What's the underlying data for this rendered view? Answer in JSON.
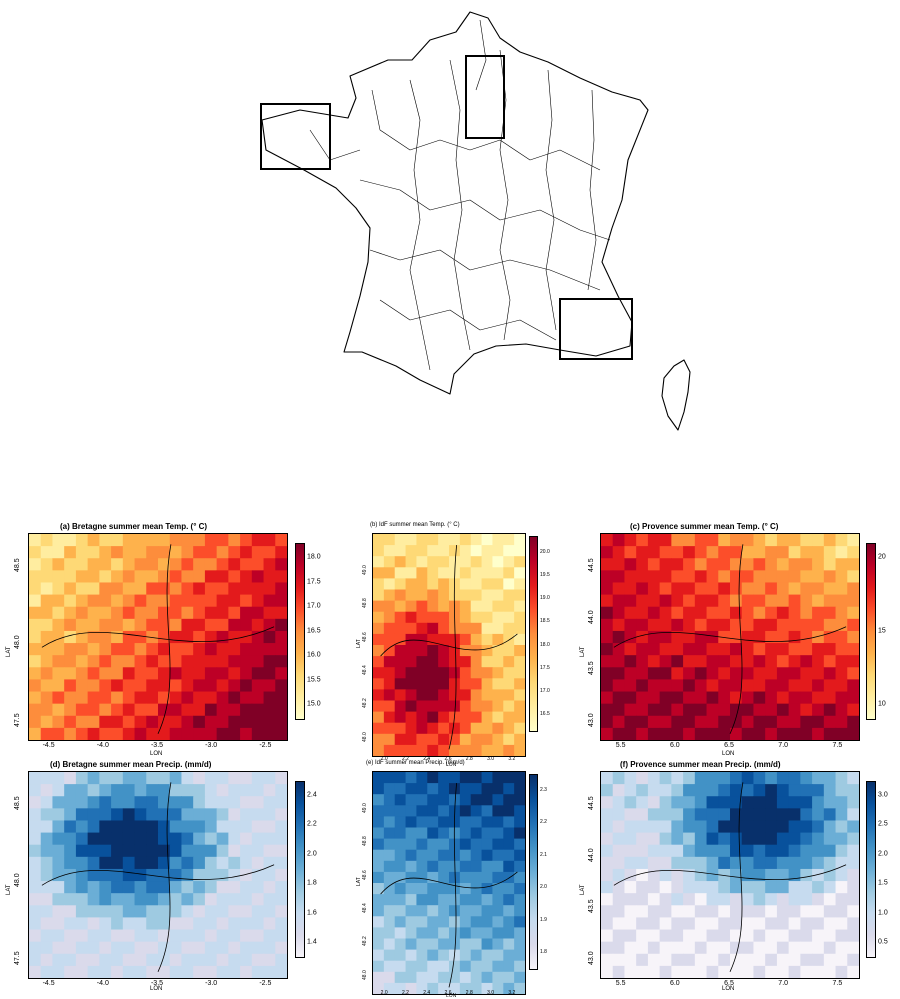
{
  "overview_map": {
    "boxes": [
      "Bretagne",
      "IdF",
      "Provence"
    ]
  },
  "panels": [
    {
      "id": "a",
      "title": "(a)  Bretagne summer mean Temp. (° C)",
      "small": false,
      "palette": "temp",
      "colorbar_ticks": [
        "18.0",
        "17.5",
        "17.0",
        "16.5",
        "16.0",
        "15.5",
        "15.0"
      ],
      "x_ticks": [
        "-4.5",
        "-4.0",
        "-3.5",
        "-3.0",
        "-2.5"
      ],
      "y_ticks": [
        "48.5",
        "48.0",
        "47.5"
      ],
      "xlabel": "LON",
      "ylabel": "LAT"
    },
    {
      "id": "b",
      "title": "(b)  IdF summer mean Temp. (° C)",
      "small": true,
      "palette": "temp",
      "colorbar_ticks": [
        "20.0",
        "19.5",
        "19.0",
        "18.5",
        "18.0",
        "17.5",
        "17.0",
        "16.5"
      ],
      "x_ticks": [
        "2.0",
        "2.2",
        "2.4",
        "2.6",
        "2.8",
        "3.0",
        "3.2"
      ],
      "y_ticks": [
        "49.0",
        "48.8",
        "48.6",
        "48.4",
        "48.2",
        "48.0"
      ],
      "xlabel": "LON",
      "ylabel": "LAT"
    },
    {
      "id": "c",
      "title": "(c)  Provence summer mean Temp. (° C)",
      "small": false,
      "palette": "temp",
      "colorbar_ticks": [
        "20",
        "15",
        "10"
      ],
      "x_ticks": [
        "5.5",
        "6.0",
        "6.5",
        "7.0",
        "7.5"
      ],
      "y_ticks": [
        "44.5",
        "44.0",
        "43.5",
        "43.0"
      ],
      "xlabel": "LON",
      "ylabel": "LAT"
    },
    {
      "id": "d",
      "title": "(d)  Bretagne summer mean Precip. (mm/d)",
      "small": false,
      "palette": "precip",
      "colorbar_ticks": [
        "2.4",
        "2.2",
        "2.0",
        "1.8",
        "1.6",
        "1.4"
      ],
      "x_ticks": [
        "-4.5",
        "-4.0",
        "-3.5",
        "-3.0",
        "-2.5"
      ],
      "y_ticks": [
        "48.5",
        "48.0",
        "47.5"
      ],
      "xlabel": "LON",
      "ylabel": "LAT"
    },
    {
      "id": "e",
      "title": "(e)  IdF summer mean Precip. (mm/d)",
      "small": true,
      "palette": "precip",
      "colorbar_ticks": [
        "2.3",
        "2.2",
        "2.1",
        "2.0",
        "1.9",
        "1.8"
      ],
      "x_ticks": [
        "2.0",
        "2.2",
        "2.4",
        "2.6",
        "2.8",
        "3.0",
        "3.2"
      ],
      "y_ticks": [
        "49.0",
        "48.8",
        "48.6",
        "48.4",
        "48.2",
        "48.0"
      ],
      "xlabel": "LON",
      "ylabel": "LAT"
    },
    {
      "id": "f",
      "title": "(f)  Provence summer mean Precip. (mm/d)",
      "small": false,
      "palette": "precip",
      "colorbar_ticks": [
        "3.0",
        "2.5",
        "2.0",
        "1.5",
        "1.0",
        "0.5"
      ],
      "x_ticks": [
        "5.5",
        "6.0",
        "6.5",
        "7.0",
        "7.5"
      ],
      "y_ticks": [
        "44.5",
        "44.0",
        "43.5",
        "43.0"
      ],
      "xlabel": "LON",
      "ylabel": "LAT"
    }
  ],
  "colors": {
    "temp": [
      "#ffffcc",
      "#ffeda0",
      "#fed976",
      "#feb24c",
      "#fd8d3c",
      "#fc4e2a",
      "#e31a1c",
      "#bd0026",
      "#800026"
    ],
    "precip": [
      "#f7f4f9",
      "#dadaeb",
      "#c6dbef",
      "#9ecae1",
      "#6baed6",
      "#4292c6",
      "#2171b5",
      "#08519c",
      "#08306b"
    ]
  }
}
